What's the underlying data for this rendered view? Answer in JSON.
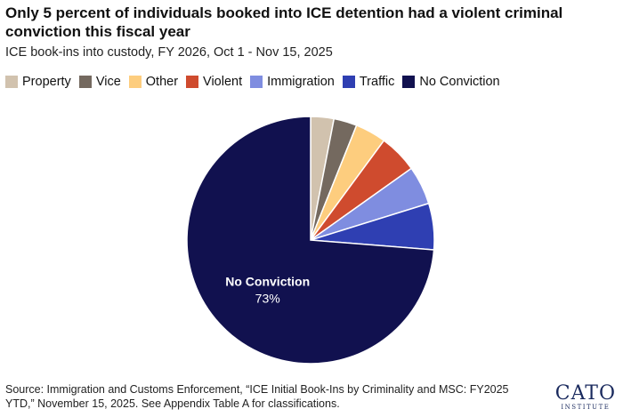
{
  "chart_data": {
    "type": "pie",
    "title": "Only 5 percent of individuals booked into ICE detention had a violent criminal conviction this fiscal year",
    "subtitle": "ICE book-ins into custody, FY 2026, Oct 1 - Nov 15, 2025",
    "unit": "percent",
    "start_angle_deg": 0,
    "direction": "clockwise",
    "slices": [
      {
        "label": "Property",
        "value": 3,
        "color": "#d1c2ae"
      },
      {
        "label": "Vice",
        "value": 3,
        "color": "#74695f"
      },
      {
        "label": "Other",
        "value": 4,
        "color": "#fdcd7e"
      },
      {
        "label": "Violent",
        "value": 5,
        "color": "#cf4b2e"
      },
      {
        "label": "Immigration",
        "value": 5,
        "color": "#7f8de0"
      },
      {
        "label": "Traffic",
        "value": 6,
        "color": "#2f3fb2"
      },
      {
        "label": "No Conviction",
        "value": 73,
        "color": "#11114f"
      }
    ],
    "data_labels": [
      {
        "slice": "No Conviction",
        "name": "No Conviction",
        "value": "73%"
      }
    ],
    "legend_position": "top-left"
  },
  "source": "Source: Immigration and Customs Enforcement, “ICE Initial Book-Ins by Criminality and MSC: FY2025 YTD,” November 15, 2025. See Appendix Table A for classifications.",
  "logo": {
    "main": "CATO",
    "sub": "INSTITUTE"
  }
}
